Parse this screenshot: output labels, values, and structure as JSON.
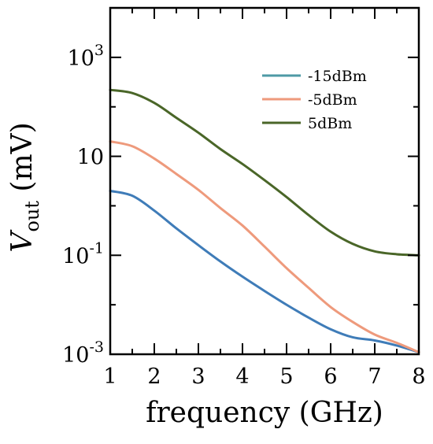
{
  "chart_data": {
    "type": "line",
    "xlabel": "frequency (GHz)",
    "ylabel": {
      "symbol": "V",
      "subscript": "out",
      "unit": "(mV)"
    },
    "xlim": [
      1,
      8
    ],
    "ylim": [
      0.001,
      10000
    ],
    "yscale": "log",
    "x_ticks": [
      "1",
      "2",
      "3",
      "4",
      "5",
      "6",
      "7",
      "8"
    ],
    "y_ticks": [
      {
        "value": 1000,
        "base": "10",
        "exp": "3"
      },
      {
        "value": 10,
        "base": "10",
        "exp": ""
      },
      {
        "value": 0.1,
        "base": "10",
        "exp": "-1"
      },
      {
        "value": 0.001,
        "base": "10",
        "exp": "-3"
      }
    ],
    "grid": false,
    "legend_position": "top-right",
    "series": [
      {
        "name": "-15dBm",
        "color": "#3f7cb8",
        "legend_color": "#4e9aa5",
        "x": [
          1.0,
          1.5,
          2.0,
          2.5,
          3.0,
          3.5,
          4.0,
          4.5,
          5.0,
          5.5,
          6.0,
          6.5,
          7.0,
          7.5,
          8.0
        ],
        "y": [
          2.0,
          1.6,
          0.8,
          0.35,
          0.16,
          0.075,
          0.037,
          0.019,
          0.01,
          0.0055,
          0.0032,
          0.0022,
          0.0019,
          0.0015,
          0.0011
        ]
      },
      {
        "name": "-5dBm",
        "color": "#ee9a7c",
        "x": [
          1.0,
          1.5,
          2.0,
          2.5,
          3.0,
          3.5,
          4.0,
          4.5,
          5.0,
          5.5,
          6.0,
          6.5,
          7.0,
          7.5,
          8.0
        ],
        "y": [
          20,
          16,
          9,
          4.4,
          2.1,
          0.9,
          0.4,
          0.15,
          0.055,
          0.022,
          0.009,
          0.0045,
          0.0025,
          0.0017,
          0.0011
        ]
      },
      {
        "name": "5dBm",
        "color": "#4a6628",
        "x": [
          1.0,
          1.5,
          2.0,
          2.5,
          3.0,
          3.5,
          4.0,
          4.5,
          5.0,
          5.5,
          6.0,
          6.5,
          7.0,
          7.5,
          8.0
        ],
        "y": [
          220,
          190,
          120,
          60,
          30,
          14,
          7,
          3.3,
          1.5,
          0.65,
          0.3,
          0.17,
          0.12,
          0.105,
          0.1
        ]
      }
    ]
  }
}
